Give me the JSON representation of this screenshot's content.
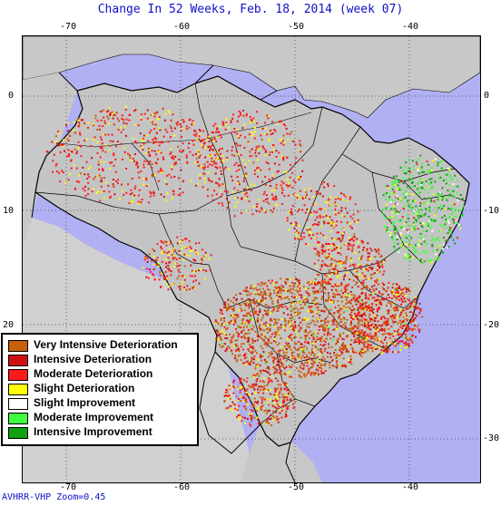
{
  "title": "Change In 52 Weeks, Feb. 18, 2014 (week 07)",
  "footer": "AVHRR-VHP Zoom=0.45",
  "axes": {
    "top_ticks": [
      "-70",
      "-60",
      "-50",
      "-40"
    ],
    "bottom_ticks": [
      "-70",
      "-60",
      "-50",
      "-40"
    ],
    "left_ticks": [
      "0",
      "10",
      "20",
      "30"
    ],
    "right_ticks": [
      "0",
      "-10",
      "-20",
      "-30"
    ]
  },
  "legend": [
    {
      "label": "Very Intensive Deterioration",
      "color": "#c8600a"
    },
    {
      "label": "Intensive Deterioration",
      "color": "#d01010"
    },
    {
      "label": "Moderate Deterioration",
      "color": "#ff1a1a"
    },
    {
      "label": "Slight Deterioration",
      "color": "#ffff00"
    },
    {
      "label": "Slight Improvement",
      "color": "#ffffff"
    },
    {
      "label": "Moderate Improvement",
      "color": "#40ff40"
    },
    {
      "label": "Intensive Improvement",
      "color": "#10a010"
    }
  ],
  "colors": {
    "ocean": "#b0b0f2",
    "land": "#c8c8c8",
    "text_blue": "#1010c8"
  }
}
